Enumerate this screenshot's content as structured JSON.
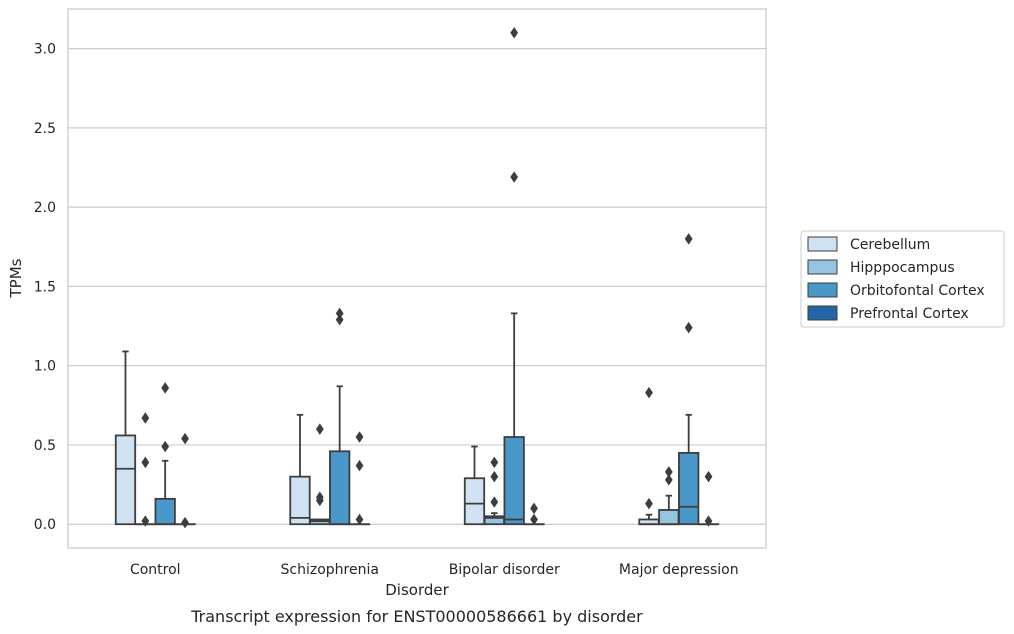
{
  "chart_data": {
    "type": "box",
    "xlabel": "Disorder",
    "ylabel": "TPMs",
    "caption": "Transcript expression for ENST00000586661 by disorder",
    "categories": [
      "Control",
      "Schizophrenia",
      "Bipolar disorder",
      "Major depression"
    ],
    "ylim": [
      -0.15,
      3.25
    ],
    "yticks": [
      0.0,
      0.5,
      1.0,
      1.5,
      2.0,
      2.5,
      3.0
    ],
    "ytick_labels": [
      "0.0",
      "0.5",
      "1.0",
      "1.5",
      "2.0",
      "2.5",
      "3.0"
    ],
    "grid": true,
    "legend_position": "right",
    "series": [
      {
        "name": "Cerebellum",
        "color": "#d0e1f2",
        "boxes": [
          {
            "min": 0.0,
            "q1": 0.0,
            "median": 0.35,
            "q3": 0.56,
            "max": 1.09,
            "outliers": []
          },
          {
            "min": 0.0,
            "q1": 0.0,
            "median": 0.04,
            "q3": 0.3,
            "max": 0.69,
            "outliers": []
          },
          {
            "min": 0.0,
            "q1": 0.0,
            "median": 0.13,
            "q3": 0.29,
            "max": 0.49,
            "outliers": []
          },
          {
            "min": 0.0,
            "q1": 0.0,
            "median": 0.0,
            "q3": 0.03,
            "max": 0.06,
            "outliers": [
              0.13,
              0.83
            ]
          }
        ]
      },
      {
        "name": "Hipppocampus",
        "color": "#94c4df",
        "boxes": [
          {
            "min": 0.0,
            "q1": 0.0,
            "median": 0.0,
            "q3": 0.0,
            "max": 0.0,
            "outliers": [
              0.02,
              0.39,
              0.67
            ]
          },
          {
            "min": 0.0,
            "q1": 0.0,
            "median": 0.02,
            "q3": 0.03,
            "max": 0.03,
            "outliers": [
              0.15,
              0.17,
              0.6
            ]
          },
          {
            "min": 0.0,
            "q1": 0.0,
            "median": 0.04,
            "q3": 0.05,
            "max": 0.07,
            "outliers": [
              0.14,
              0.3,
              0.39
            ]
          },
          {
            "min": 0.0,
            "q1": 0.0,
            "median": 0.0,
            "q3": 0.09,
            "max": 0.18,
            "outliers": [
              0.28,
              0.33
            ]
          }
        ]
      },
      {
        "name": "Orbitofontal Cortex",
        "color": "#4a98c9",
        "boxes": [
          {
            "min": 0.0,
            "q1": 0.0,
            "median": 0.0,
            "q3": 0.16,
            "max": 0.4,
            "outliers": [
              0.49,
              0.86
            ]
          },
          {
            "min": 0.0,
            "q1": 0.0,
            "median": 0.0,
            "q3": 0.46,
            "max": 0.87,
            "outliers": [
              1.29,
              1.33
            ]
          },
          {
            "min": 0.0,
            "q1": 0.0,
            "median": 0.03,
            "q3": 0.55,
            "max": 1.33,
            "outliers": [
              2.19,
              3.1
            ]
          },
          {
            "min": 0.0,
            "q1": 0.0,
            "median": 0.11,
            "q3": 0.45,
            "max": 0.69,
            "outliers": [
              1.24,
              1.8
            ]
          }
        ]
      },
      {
        "name": "Prefrontal Cortex",
        "color": "#2366a8",
        "boxes": [
          {
            "min": 0.0,
            "q1": 0.0,
            "median": 0.0,
            "q3": 0.0,
            "max": 0.0,
            "outliers": [
              0.01,
              0.54
            ]
          },
          {
            "min": 0.0,
            "q1": 0.0,
            "median": 0.0,
            "q3": 0.0,
            "max": 0.0,
            "outliers": [
              0.03,
              0.37,
              0.55
            ]
          },
          {
            "min": 0.0,
            "q1": 0.0,
            "median": 0.0,
            "q3": 0.0,
            "max": 0.0,
            "outliers": [
              0.03,
              0.1
            ]
          },
          {
            "min": 0.0,
            "q1": 0.0,
            "median": 0.0,
            "q3": 0.0,
            "max": 0.0,
            "outliers": [
              0.02,
              0.3
            ]
          }
        ]
      }
    ]
  }
}
